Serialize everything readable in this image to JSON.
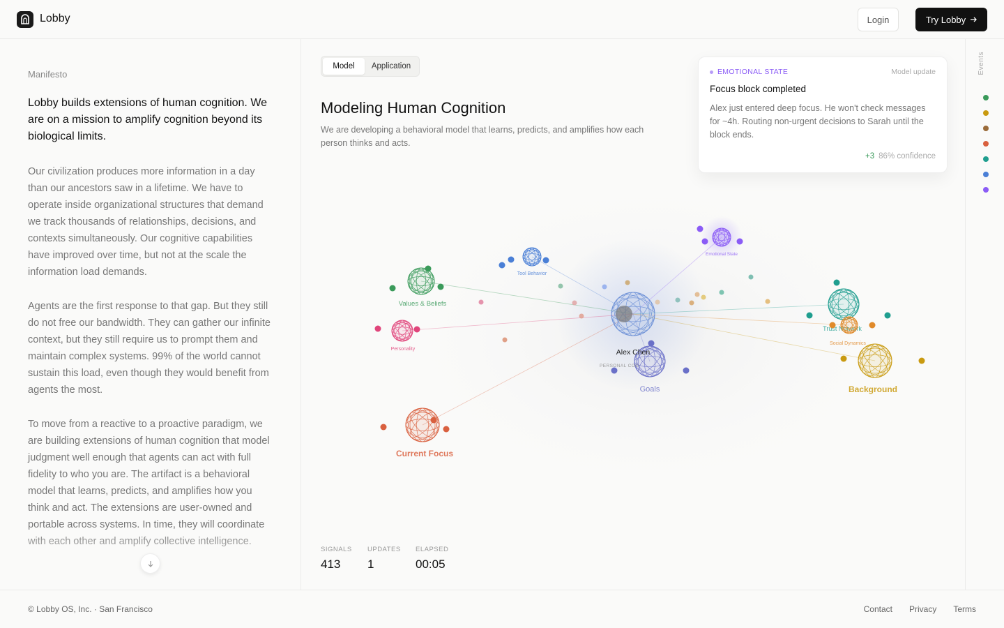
{
  "header": {
    "brand": "Lobby",
    "login": "Login",
    "cta": "Try Lobby"
  },
  "manifesto": {
    "label": "Manifesto",
    "lead": "Lobby builds extensions of human cognition. We are on a mission to amplify cognition beyond its biological limits.",
    "paragraphs": [
      "Our civilization produces more information in a day than our ancestors saw in a lifetime. We have to operate inside organizational structures that demand we track thousands of relationships, decisions, and contexts simultaneously. Our cognitive capabilities have improved over time, but not at the scale the information load demands.",
      "Agents are the first response to that gap. But they still do not free our bandwidth. They can gather our infinite context, but they still require us to prompt them and maintain complex systems. 99% of the world cannot sustain this load, even though they would benefit from agents the most.",
      "To move from a reactive to a proactive paradigm, we are building extensions of human cognition that model judgment well enough that agents can act with full fidelity to who you are. The artifact is a behavioral model that learns, predicts, and amplifies how you think and act. The extensions are user-owned and portable across systems. In time, they will coordinate with each other and amplify collective intelligence."
    ]
  },
  "main": {
    "tabs": [
      "Model",
      "Application"
    ],
    "title": "Modeling Human Cognition",
    "subtitle": "We are developing a behavioral model that learns, predicts, and amplifies how each person thinks and acts."
  },
  "card": {
    "tag": "EMOTIONAL STATE",
    "meta": "Model update",
    "title": "Focus block completed",
    "body": "Alex just entered deep focus. He won't check messages for ~4h. Routing non-urgent decisions to Sarah until the block ends.",
    "delta": "+3",
    "confidence": "86% confidence"
  },
  "graph": {
    "center": {
      "label": "Alex Chen",
      "sublabel": "PERSONAL COG"
    },
    "nodes": [
      {
        "label": "Tool Behavior"
      },
      {
        "label": "Emotional State"
      },
      {
        "label": "Values & Beliefs"
      },
      {
        "label": "Personality"
      },
      {
        "label": "Trust Network"
      },
      {
        "label": "Social Dynamics"
      },
      {
        "label": "Background"
      },
      {
        "label": "Goals"
      },
      {
        "label": "Current Focus"
      }
    ]
  },
  "stats": [
    {
      "label": "SIGNALS",
      "value": 413
    },
    {
      "label": "UPDATES",
      "value": 1
    },
    {
      "label": "ELAPSED",
      "value": "00:05"
    }
  ],
  "rail": {
    "label": "Events"
  },
  "footer": {
    "copyright": "© Lobby OS, Inc. · San Francisco",
    "links": [
      "Contact",
      "Privacy",
      "Terms"
    ]
  }
}
